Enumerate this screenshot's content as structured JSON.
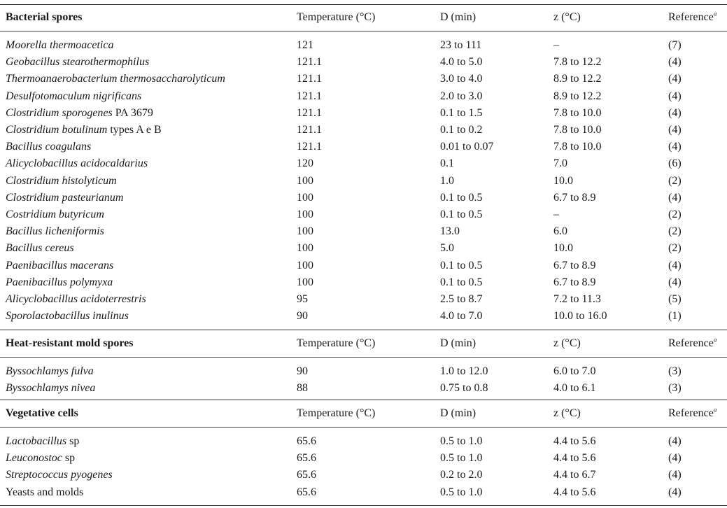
{
  "sections": [
    {
      "title": "Bacterial spores",
      "columns": {
        "temperature": "Temperature (°C)",
        "d": "D (min)",
        "z": "z (°C)",
        "reference": "Reference",
        "reference_sup": "a"
      },
      "rows": [
        {
          "organism_italic": "Moorella thermoacetica",
          "organism_suffix": "",
          "temperature": "121",
          "d": "23 to 111",
          "z": "–",
          "reference": "(7)"
        },
        {
          "organism_italic": "Geobacillus stearothermophilus",
          "organism_suffix": "",
          "temperature": "121.1",
          "d": "4.0 to 5.0",
          "z": "7.8 to 12.2",
          "reference": "(4)"
        },
        {
          "organism_italic": "Thermoanaerobacterium thermosaccharolyticum",
          "organism_suffix": "",
          "temperature": "121.1",
          "d": "3.0 to 4.0",
          "z": "8.9 to 12.2",
          "reference": "(4)"
        },
        {
          "organism_italic": "Desulfotomaculum nigrificans",
          "organism_suffix": "",
          "temperature": "121.1",
          "d": "2.0 to 3.0",
          "z": "8.9 to 12.2",
          "reference": "(4)"
        },
        {
          "organism_italic": "Clostridium sporogenes",
          "organism_suffix": " PA 3679",
          "temperature": "121.1",
          "d": "0.1 to 1.5",
          "z": "7.8 to 10.0",
          "reference": "(4)"
        },
        {
          "organism_italic": "Clostridium botulinum",
          "organism_suffix": " types A e B",
          "temperature": "121.1",
          "d": "0.1 to 0.2",
          "z": "7.8 to 10.0",
          "reference": "(4)"
        },
        {
          "organism_italic": "Bacillus coagulans",
          "organism_suffix": "",
          "temperature": "121.1",
          "d": "0.01 to 0.07",
          "z": "7.8 to 10.0",
          "reference": "(4)"
        },
        {
          "organism_italic": "Alicyclobacillus acidocaldarius",
          "organism_suffix": "",
          "temperature": "120",
          "d": "0.1",
          "z": "7.0",
          "reference": "(6)"
        },
        {
          "organism_italic": "Clostridium histolyticum",
          "organism_suffix": "",
          "temperature": "100",
          "d": "1.0",
          "z": "10.0",
          "reference": "(2)"
        },
        {
          "organism_italic": "Clostridium pasteurianum",
          "organism_suffix": "",
          "temperature": "100",
          "d": "0.1 to 0.5",
          "z": "6.7 to 8.9",
          "reference": "(4)"
        },
        {
          "organism_italic": "Costridium butyricum",
          "organism_suffix": "",
          "temperature": "100",
          "d": "0.1 to 0.5",
          "z": "–",
          "reference": "(2)"
        },
        {
          "organism_italic": "Bacillus licheniformis",
          "organism_suffix": "",
          "temperature": "100",
          "d": "13.0",
          "z": "6.0",
          "reference": "(2)"
        },
        {
          "organism_italic": "Bacillus cereus",
          "organism_suffix": "",
          "temperature": "100",
          "d": "5.0",
          "z": "10.0",
          "reference": "(2)"
        },
        {
          "organism_italic": "Paenibacillus macerans",
          "organism_suffix": "",
          "temperature": "100",
          "d": "0.1 to 0.5",
          "z": "6.7 to 8.9",
          "reference": "(4)"
        },
        {
          "organism_italic": "Paenibacillus polymyxa",
          "organism_suffix": "",
          "temperature": "100",
          "d": "0.1 to 0.5",
          "z": "6.7 to 8.9",
          "reference": "(4)"
        },
        {
          "organism_italic": "Alicyclobacillus acidoterrestris",
          "organism_suffix": "",
          "temperature": "95",
          "d": "2.5 to 8.7",
          "z": "7.2 to 11.3",
          "reference": "(5)"
        },
        {
          "organism_italic": "Sporolactobacillus inulinus",
          "organism_suffix": "",
          "temperature": "90",
          "d": "4.0 to 7.0",
          "z": "10.0 to 16.0",
          "reference": "(1)"
        }
      ]
    },
    {
      "title": "Heat-resistant mold spores",
      "columns": {
        "temperature": "Temperature (°C)",
        "d": "D (min)",
        "z": "z (°C)",
        "reference": "Reference",
        "reference_sup": "a"
      },
      "rows": [
        {
          "organism_italic": "Byssochlamys fulva",
          "organism_suffix": "",
          "temperature": "90",
          "d": "1.0 to 12.0",
          "z": "6.0 to 7.0",
          "reference": "(3)"
        },
        {
          "organism_italic": "Byssochlamys nivea",
          "organism_suffix": "",
          "temperature": "88",
          "d": "0.75 to 0.8",
          "z": "4.0 to 6.1",
          "reference": "(3)"
        }
      ]
    },
    {
      "title": "Vegetative cells",
      "columns": {
        "temperature": "Temperature (°C)",
        "d": "D (min)",
        "z": "z (°C)",
        "reference": "Reference",
        "reference_sup": "a"
      },
      "rows": [
        {
          "organism_italic": "Lactobacillus",
          "organism_suffix": " sp",
          "temperature": "65.6",
          "d": "0.5 to 1.0",
          "z": "4.4 to 5.6",
          "reference": "(4)"
        },
        {
          "organism_italic": "Leuconostoc",
          "organism_suffix": " sp",
          "temperature": "65.6",
          "d": "0.5 to 1.0",
          "z": "4.4 to 5.6",
          "reference": "(4)"
        },
        {
          "organism_italic": "Streptococcus pyogenes",
          "organism_suffix": "",
          "temperature": "65.6",
          "d": "0.2 to 2.0",
          "z": "4.4 to 6.7",
          "reference": "(4)"
        },
        {
          "organism_italic": "",
          "organism_suffix": "Yeasts and molds",
          "temperature": "65.6",
          "d": "0.5 to 1.0",
          "z": "4.4 to 5.6",
          "reference": "(4)"
        }
      ]
    }
  ]
}
